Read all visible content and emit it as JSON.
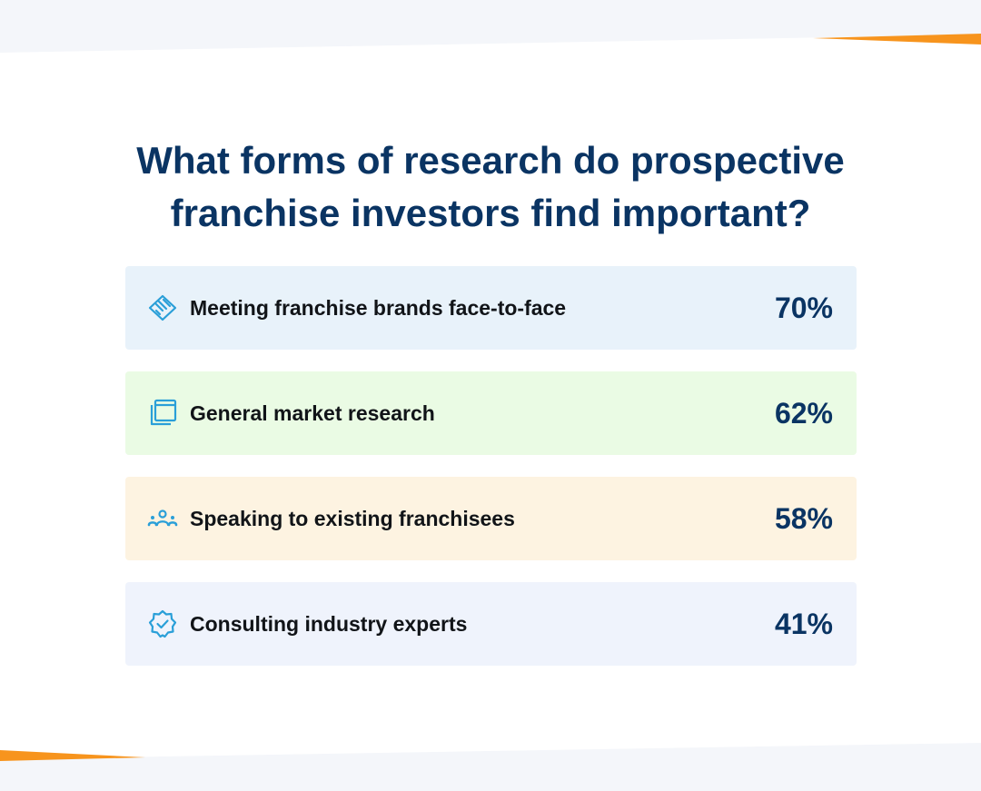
{
  "chart_data": {
    "type": "bar",
    "title": "What forms of research do prospective franchise investors find important?",
    "title_lines": [
      "What forms of research do prospective",
      "franchise investors find important?"
    ],
    "categories": [
      "Meeting franchise brands face-to-face",
      "General market research",
      "Speaking to existing franchisees",
      "Consulting industry experts"
    ],
    "values": [
      70,
      62,
      58,
      41
    ],
    "value_labels": [
      "70%",
      "62%",
      "58%",
      "41%"
    ],
    "unit": "%",
    "icons": [
      "handshake-icon",
      "window-stack-icon",
      "people-group-icon",
      "verified-badge-icon"
    ],
    "row_colors": [
      "#e8f2fa",
      "#eafbe4",
      "#fdf3e1",
      "#eff3fc"
    ]
  },
  "colors": {
    "title": "#0a3463",
    "accent_orange": "#f7941d",
    "icon": "#2a9fd8",
    "label": "#111418"
  }
}
